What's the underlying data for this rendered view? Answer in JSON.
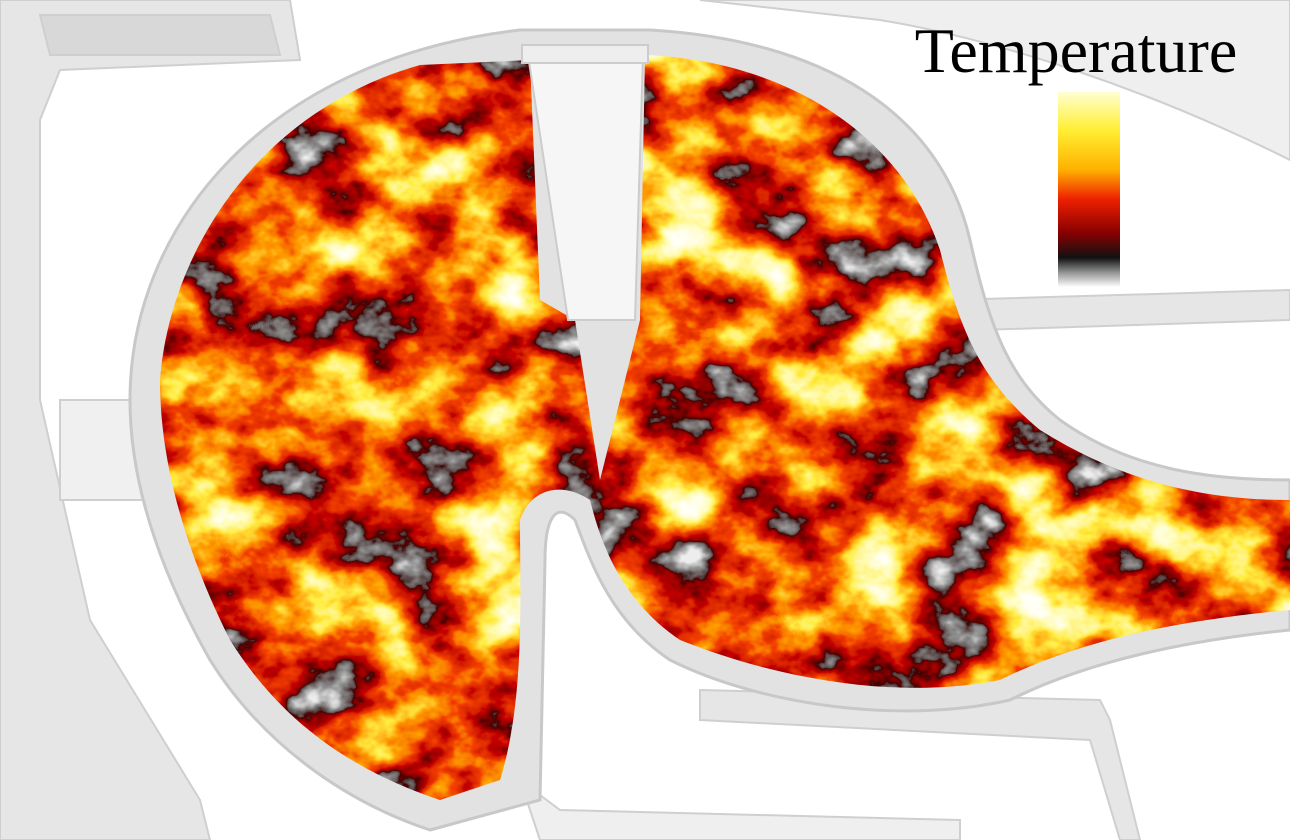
{
  "legend": {
    "title": "Temperature"
  }
}
